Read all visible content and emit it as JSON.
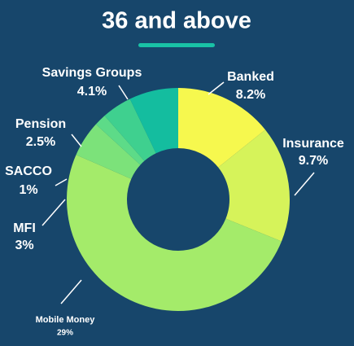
{
  "chart_data": {
    "type": "donut",
    "title": "36 and above",
    "categories": [
      "Banked",
      "Insurance",
      "Mobile Money",
      "MFI",
      "SACCO",
      "Pension",
      "Savings Groups"
    ],
    "values": [
      8.2,
      9.7,
      29,
      3,
      1,
      2.5,
      4.1
    ],
    "value_labels": [
      "8.2%",
      "9.7%",
      "29%",
      "3%",
      "1%",
      "2.5%",
      "4.1%"
    ],
    "colors": [
      "#f6f84e",
      "#d6f35a",
      "#a4eb6a",
      "#7ce27a",
      "#5ddb88",
      "#3fd08f",
      "#14bd9f"
    ]
  }
}
